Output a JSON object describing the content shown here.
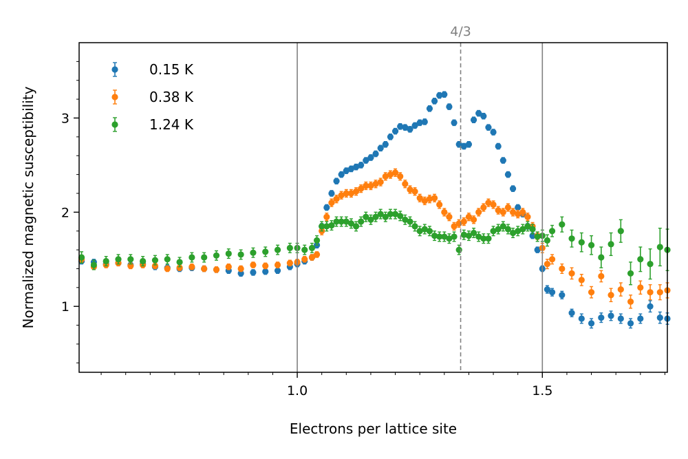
{
  "chart_data": {
    "type": "scatter",
    "title": "",
    "xlabel": "Electrons per lattice site",
    "ylabel": "Normalized magnetic susceptibility",
    "xlim": [
      0.555,
      1.755
    ],
    "ylim": [
      0.3,
      3.8
    ],
    "x_ticks": [
      1.0,
      1.5
    ],
    "x_tick_labels": [
      "1.0",
      "1.5"
    ],
    "x_minor_ticks": [
      0.6,
      0.65,
      0.7,
      0.75,
      0.8,
      0.85,
      0.9,
      0.95,
      1.05,
      1.1,
      1.15,
      1.2,
      1.25,
      1.3,
      1.35,
      1.4,
      1.45,
      1.55,
      1.6,
      1.65,
      1.7,
      1.75
    ],
    "y_ticks": [
      1,
      2,
      3
    ],
    "y_tick_labels": [
      "1",
      "2",
      "3"
    ],
    "y_minor_ticks": [
      0.4,
      0.6,
      0.8,
      1.2,
      1.4,
      1.6,
      1.8,
      2.2,
      2.4,
      2.6,
      2.8,
      3.2,
      3.4,
      3.6
    ],
    "grid": false,
    "legend_position": "top-left",
    "vertical_lines": [
      {
        "x": 1.0,
        "style": "solid",
        "color": "#808080"
      },
      {
        "x": 1.5,
        "style": "solid",
        "color": "#808080"
      },
      {
        "x": 1.3333,
        "style": "dashed",
        "color": "#808080",
        "label": "4/3"
      }
    ],
    "series": [
      {
        "name": "0.15 K",
        "color": "#1f77b4",
        "x": [
          0.56,
          0.585,
          0.61,
          0.635,
          0.66,
          0.685,
          0.71,
          0.735,
          0.76,
          0.785,
          0.81,
          0.835,
          0.86,
          0.885,
          0.91,
          0.935,
          0.96,
          0.985,
          1.0,
          1.015,
          1.03,
          1.04,
          1.05,
          1.06,
          1.07,
          1.08,
          1.09,
          1.1,
          1.11,
          1.12,
          1.13,
          1.14,
          1.15,
          1.16,
          1.17,
          1.18,
          1.19,
          1.2,
          1.21,
          1.22,
          1.23,
          1.24,
          1.25,
          1.26,
          1.27,
          1.28,
          1.29,
          1.3,
          1.31,
          1.32,
          1.33,
          1.34,
          1.35,
          1.36,
          1.37,
          1.38,
          1.39,
          1.4,
          1.41,
          1.42,
          1.43,
          1.44,
          1.45,
          1.46,
          1.47,
          1.48,
          1.49,
          1.5,
          1.51,
          1.52,
          1.54,
          1.56,
          1.58,
          1.6,
          1.62,
          1.64,
          1.66,
          1.68,
          1.7,
          1.72,
          1.74,
          1.755
        ],
        "y": [
          1.48,
          1.47,
          1.45,
          1.46,
          1.44,
          1.45,
          1.42,
          1.41,
          1.4,
          1.41,
          1.4,
          1.39,
          1.38,
          1.35,
          1.36,
          1.37,
          1.38,
          1.42,
          1.45,
          1.48,
          1.52,
          1.65,
          1.85,
          2.05,
          2.2,
          2.33,
          2.4,
          2.44,
          2.46,
          2.48,
          2.5,
          2.55,
          2.58,
          2.62,
          2.68,
          2.72,
          2.8,
          2.86,
          2.91,
          2.9,
          2.88,
          2.92,
          2.95,
          2.96,
          3.1,
          3.18,
          3.24,
          3.25,
          3.12,
          2.95,
          2.72,
          2.7,
          2.72,
          2.98,
          3.05,
          3.02,
          2.9,
          2.85,
          2.7,
          2.55,
          2.4,
          2.25,
          2.05,
          1.98,
          1.85,
          1.75,
          1.6,
          1.4,
          1.18,
          1.15,
          1.12,
          0.93,
          0.87,
          0.82,
          0.88,
          0.9,
          0.87,
          0.82,
          0.87,
          1.0,
          0.88,
          0.87
        ],
        "err": [
          0.03,
          0.03,
          0.03,
          0.03,
          0.03,
          0.03,
          0.03,
          0.03,
          0.03,
          0.03,
          0.03,
          0.03,
          0.03,
          0.03,
          0.03,
          0.03,
          0.03,
          0.03,
          0.03,
          0.03,
          0.03,
          0.03,
          0.03,
          0.03,
          0.03,
          0.03,
          0.03,
          0.03,
          0.03,
          0.03,
          0.03,
          0.03,
          0.03,
          0.03,
          0.03,
          0.03,
          0.03,
          0.03,
          0.03,
          0.03,
          0.03,
          0.03,
          0.03,
          0.03,
          0.03,
          0.03,
          0.03,
          0.03,
          0.03,
          0.03,
          0.03,
          0.03,
          0.03,
          0.03,
          0.03,
          0.03,
          0.03,
          0.03,
          0.03,
          0.03,
          0.03,
          0.03,
          0.03,
          0.03,
          0.03,
          0.03,
          0.03,
          0.03,
          0.04,
          0.04,
          0.04,
          0.04,
          0.05,
          0.05,
          0.05,
          0.05,
          0.05,
          0.05,
          0.05,
          0.06,
          0.06,
          0.06
        ]
      },
      {
        "name": "0.38 K",
        "color": "#ff7f0e",
        "x": [
          0.56,
          0.585,
          0.61,
          0.635,
          0.66,
          0.685,
          0.71,
          0.735,
          0.76,
          0.785,
          0.81,
          0.835,
          0.86,
          0.885,
          0.91,
          0.935,
          0.96,
          0.985,
          1.0,
          1.015,
          1.03,
          1.04,
          1.05,
          1.06,
          1.07,
          1.08,
          1.09,
          1.1,
          1.11,
          1.12,
          1.13,
          1.14,
          1.15,
          1.16,
          1.17,
          1.18,
          1.19,
          1.2,
          1.21,
          1.22,
          1.23,
          1.24,
          1.25,
          1.26,
          1.27,
          1.28,
          1.29,
          1.3,
          1.31,
          1.32,
          1.33,
          1.34,
          1.35,
          1.36,
          1.37,
          1.38,
          1.39,
          1.4,
          1.41,
          1.42,
          1.43,
          1.44,
          1.45,
          1.46,
          1.47,
          1.48,
          1.49,
          1.5,
          1.51,
          1.52,
          1.54,
          1.56,
          1.58,
          1.6,
          1.62,
          1.64,
          1.66,
          1.68,
          1.7,
          1.72,
          1.74,
          1.755
        ],
        "y": [
          1.5,
          1.42,
          1.44,
          1.46,
          1.43,
          1.44,
          1.43,
          1.4,
          1.41,
          1.42,
          1.4,
          1.39,
          1.42,
          1.4,
          1.44,
          1.43,
          1.44,
          1.46,
          1.47,
          1.5,
          1.52,
          1.55,
          1.8,
          1.95,
          2.1,
          2.14,
          2.18,
          2.2,
          2.2,
          2.22,
          2.25,
          2.28,
          2.28,
          2.3,
          2.32,
          2.38,
          2.4,
          2.42,
          2.38,
          2.3,
          2.24,
          2.22,
          2.15,
          2.12,
          2.14,
          2.15,
          2.08,
          2.0,
          1.95,
          1.85,
          1.88,
          1.9,
          1.95,
          1.92,
          2.0,
          2.05,
          2.1,
          2.08,
          2.02,
          2.0,
          2.05,
          2.0,
          1.98,
          2.0,
          1.95,
          1.85,
          1.75,
          1.62,
          1.45,
          1.5,
          1.4,
          1.35,
          1.28,
          1.15,
          1.32,
          1.12,
          1.18,
          1.05,
          1.2,
          1.15,
          1.15,
          1.17
        ],
        "err": [
          0.03,
          0.03,
          0.03,
          0.03,
          0.03,
          0.03,
          0.03,
          0.03,
          0.03,
          0.03,
          0.03,
          0.03,
          0.03,
          0.03,
          0.03,
          0.03,
          0.03,
          0.03,
          0.03,
          0.03,
          0.03,
          0.03,
          0.04,
          0.04,
          0.04,
          0.04,
          0.04,
          0.04,
          0.04,
          0.04,
          0.04,
          0.04,
          0.04,
          0.04,
          0.04,
          0.04,
          0.04,
          0.04,
          0.04,
          0.04,
          0.04,
          0.04,
          0.04,
          0.04,
          0.04,
          0.04,
          0.04,
          0.04,
          0.04,
          0.04,
          0.04,
          0.04,
          0.04,
          0.04,
          0.04,
          0.04,
          0.04,
          0.04,
          0.04,
          0.04,
          0.04,
          0.04,
          0.04,
          0.04,
          0.04,
          0.04,
          0.04,
          0.05,
          0.05,
          0.05,
          0.05,
          0.06,
          0.06,
          0.06,
          0.06,
          0.07,
          0.07,
          0.07,
          0.07,
          0.08,
          0.08,
          0.08
        ]
      },
      {
        "name": "1.24 K",
        "color": "#2ca02c",
        "x": [
          0.56,
          0.585,
          0.61,
          0.635,
          0.66,
          0.685,
          0.71,
          0.735,
          0.76,
          0.785,
          0.81,
          0.835,
          0.86,
          0.885,
          0.91,
          0.935,
          0.96,
          0.985,
          1.0,
          1.015,
          1.03,
          1.04,
          1.05,
          1.06,
          1.07,
          1.08,
          1.09,
          1.1,
          1.11,
          1.12,
          1.13,
          1.14,
          1.15,
          1.16,
          1.17,
          1.18,
          1.19,
          1.2,
          1.21,
          1.22,
          1.23,
          1.24,
          1.25,
          1.26,
          1.27,
          1.28,
          1.29,
          1.3,
          1.31,
          1.32,
          1.33,
          1.34,
          1.35,
          1.36,
          1.37,
          1.38,
          1.39,
          1.4,
          1.41,
          1.42,
          1.43,
          1.44,
          1.45,
          1.46,
          1.47,
          1.48,
          1.49,
          1.5,
          1.51,
          1.52,
          1.54,
          1.56,
          1.58,
          1.6,
          1.62,
          1.64,
          1.66,
          1.68,
          1.7,
          1.72,
          1.74,
          1.755
        ],
        "y": [
          1.52,
          1.44,
          1.48,
          1.5,
          1.5,
          1.48,
          1.49,
          1.5,
          1.47,
          1.52,
          1.52,
          1.54,
          1.56,
          1.55,
          1.57,
          1.58,
          1.6,
          1.62,
          1.62,
          1.6,
          1.62,
          1.7,
          1.85,
          1.85,
          1.86,
          1.9,
          1.9,
          1.9,
          1.88,
          1.85,
          1.9,
          1.95,
          1.92,
          1.95,
          1.98,
          1.95,
          1.98,
          1.98,
          1.96,
          1.92,
          1.9,
          1.85,
          1.8,
          1.82,
          1.8,
          1.75,
          1.74,
          1.74,
          1.72,
          1.74,
          1.6,
          1.76,
          1.75,
          1.78,
          1.74,
          1.72,
          1.72,
          1.8,
          1.82,
          1.85,
          1.82,
          1.78,
          1.8,
          1.82,
          1.85,
          1.82,
          1.74,
          1.75,
          1.7,
          1.8,
          1.87,
          1.72,
          1.68,
          1.65,
          1.52,
          1.66,
          1.8,
          1.35,
          1.5,
          1.45,
          1.63,
          1.6
        ],
        "err": [
          0.06,
          0.05,
          0.05,
          0.05,
          0.05,
          0.05,
          0.05,
          0.05,
          0.05,
          0.05,
          0.05,
          0.05,
          0.05,
          0.05,
          0.05,
          0.05,
          0.05,
          0.05,
          0.05,
          0.05,
          0.05,
          0.05,
          0.05,
          0.05,
          0.05,
          0.05,
          0.05,
          0.05,
          0.05,
          0.05,
          0.05,
          0.05,
          0.05,
          0.05,
          0.05,
          0.05,
          0.05,
          0.05,
          0.05,
          0.05,
          0.05,
          0.05,
          0.05,
          0.05,
          0.05,
          0.05,
          0.05,
          0.05,
          0.05,
          0.05,
          0.05,
          0.05,
          0.05,
          0.05,
          0.05,
          0.05,
          0.05,
          0.05,
          0.05,
          0.05,
          0.05,
          0.05,
          0.05,
          0.05,
          0.05,
          0.05,
          0.05,
          0.06,
          0.06,
          0.06,
          0.08,
          0.09,
          0.1,
          0.1,
          0.11,
          0.12,
          0.12,
          0.12,
          0.13,
          0.16,
          0.2,
          0.22
        ]
      }
    ]
  }
}
